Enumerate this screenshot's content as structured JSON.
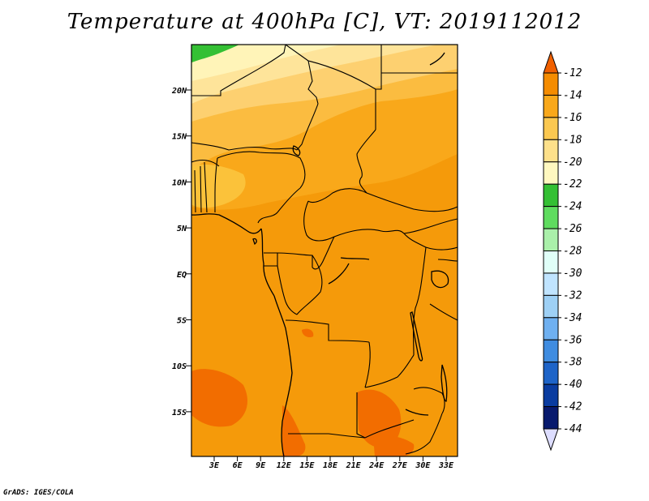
{
  "title": "Temperature at 400hPa [C], VT: 2019112012",
  "credit": "GrADS: IGES/COLA",
  "map": {
    "lat_labels": [
      "20N",
      "15N",
      "10N",
      "5N",
      "EQ",
      "5S",
      "10S",
      "15S"
    ],
    "lon_labels": [
      "3E",
      "6E",
      "9E",
      "12E",
      "15E",
      "18E",
      "21E",
      "24E",
      "27E",
      "30E",
      "33E"
    ]
  },
  "colorbar": {
    "labels": [
      "-12",
      "-14",
      "-16",
      "-18",
      "-20",
      "-22",
      "-24",
      "-26",
      "-28",
      "-30",
      "-32",
      "-34",
      "-36",
      "-38",
      "-40",
      "-42",
      "-44"
    ],
    "colors": [
      "#f06000",
      "#f58c00",
      "#f9a81a",
      "#fbc850",
      "#fde08a",
      "#fff8c0",
      "#34c034",
      "#5fdc5f",
      "#aaf0aa",
      "#e0fff8",
      "#c0e4ff",
      "#9ed0f5",
      "#6fb0f0",
      "#3f8ce0",
      "#1e64c8",
      "#0a3ca0",
      "#081a6e",
      "#ddddff"
    ]
  }
}
